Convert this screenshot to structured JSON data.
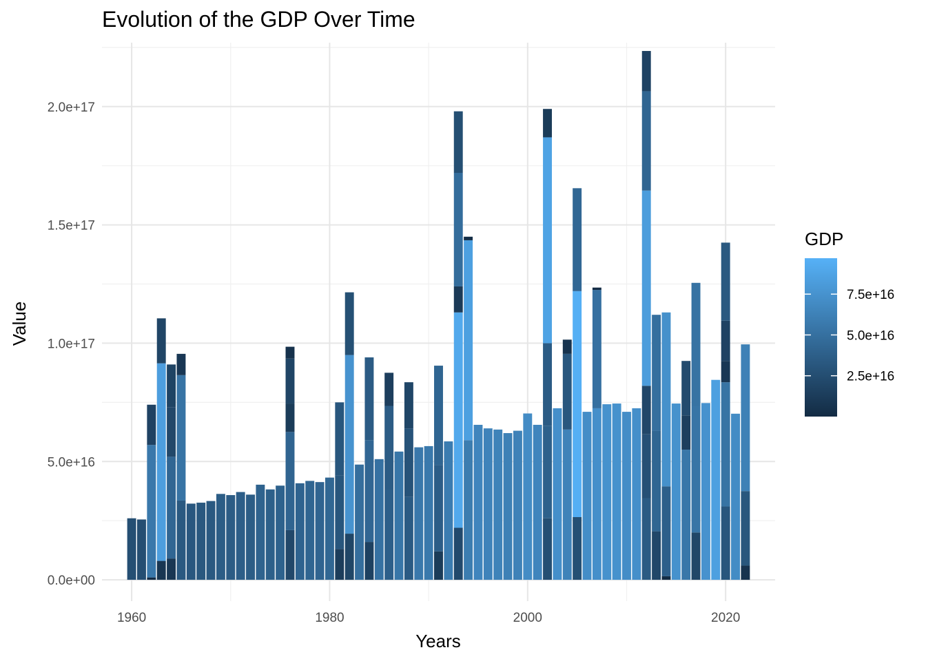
{
  "chart_data": {
    "type": "bar",
    "stacked": true,
    "title": "Evolution of the GDP Over Time",
    "xlabel": "Years",
    "ylabel": "Value",
    "xlim": [
      1957,
      2025
    ],
    "ylim": [
      -9000000000000000,
      227000000000000000
    ],
    "x_ticks": [
      1960,
      1980,
      2000,
      2020
    ],
    "x_tick_labels": [
      "1960",
      "1980",
      "2000",
      "2020"
    ],
    "y_ticks": [
      0,
      50000000000000000,
      100000000000000000,
      150000000000000000,
      200000000000000000
    ],
    "y_tick_labels": [
      "0.0e+00",
      "5.0e+16",
      "1.0e+17",
      "1.5e+17",
      "2.0e+17"
    ],
    "grid": true,
    "legend": {
      "title": "GDP",
      "position": "right",
      "type": "colorbar",
      "min": 0,
      "max": 97000000000000000,
      "breaks": [
        25000000000000000,
        50000000000000000,
        75000000000000000
      ],
      "labels": [
        "2.5e+16",
        "5.0e+16",
        "7.5e+16"
      ],
      "low_color": "#132B43",
      "high_color": "#56B1F7"
    },
    "fill_scale": {
      "min": 0,
      "max": 97000000000000000,
      "low": "#132B43",
      "high": "#56B1F7"
    },
    "bars": [
      {
        "year": 1960,
        "segments": [
          2.6e+16
        ]
      },
      {
        "year": 1961,
        "segments": [
          2.55e+16
        ]
      },
      {
        "year": 1962,
        "segments": [
          1000000000000000.0,
          5.6e+16,
          1.7e+16
        ]
      },
      {
        "year": 1963,
        "segments": [
          8000000000000000.0,
          8.35e+16,
          1.9e+16
        ]
      },
      {
        "year": 1964,
        "segments": [
          9000000000000000.0,
          4.3e+16,
          2.1e+16,
          1.8e+16
        ]
      },
      {
        "year": 1965,
        "segments": [
          3.35e+16,
          5.3e+16,
          9000000000000000.0
        ]
      },
      {
        "year": 1966,
        "segments": [
          3.22e+16
        ]
      },
      {
        "year": 1967,
        "segments": [
          3.26e+16
        ]
      },
      {
        "year": 1968,
        "segments": [
          3.33e+16
        ]
      },
      {
        "year": 1969,
        "segments": [
          3.63e+16
        ]
      },
      {
        "year": 1970,
        "segments": [
          3.58e+16
        ]
      },
      {
        "year": 1971,
        "segments": [
          3.71e+16
        ]
      },
      {
        "year": 1972,
        "segments": [
          3.6e+16
        ]
      },
      {
        "year": 1973,
        "segments": [
          4.02e+16
        ]
      },
      {
        "year": 1974,
        "segments": [
          3.82e+16
        ]
      },
      {
        "year": 1975,
        "segments": [
          3.98e+16
        ]
      },
      {
        "year": 1976,
        "segments": [
          2.1e+16,
          4.15e+16,
          1.2e+16,
          1.9e+16,
          5000000000000000.0
        ]
      },
      {
        "year": 1977,
        "segments": [
          4.08e+16
        ]
      },
      {
        "year": 1978,
        "segments": [
          4.18e+16
        ]
      },
      {
        "year": 1979,
        "segments": [
          4.13e+16
        ]
      },
      {
        "year": 1980,
        "segments": [
          4.32e+16
        ]
      },
      {
        "year": 1981,
        "segments": [
          1.3e+16,
          3.1e+16,
          3.1e+16
        ]
      },
      {
        "year": 1982,
        "segments": [
          1.95e+16,
          7.55e+16,
          2.65e+16
        ]
      },
      {
        "year": 1983,
        "segments": [
          4.87e+16
        ]
      },
      {
        "year": 1984,
        "segments": [
          1.6e+16,
          4.3e+16,
          3.5e+16
        ]
      },
      {
        "year": 1985,
        "segments": [
          5.1e+16
        ]
      },
      {
        "year": 1986,
        "segments": [
          3.8e+16,
          3.55e+16,
          1.4e+16
        ]
      },
      {
        "year": 1987,
        "segments": [
          5.42e+16
        ]
      },
      {
        "year": 1988,
        "segments": [
          3.5e+16,
          2.9e+16,
          1.95e+16
        ]
      },
      {
        "year": 1989,
        "segments": [
          5.6e+16
        ]
      },
      {
        "year": 1990,
        "segments": [
          5.65e+16
        ]
      },
      {
        "year": 1991,
        "segments": [
          1.2e+16,
          3.65e+16,
          4.2e+16
        ]
      },
      {
        "year": 1992,
        "segments": [
          5.85e+16
        ]
      },
      {
        "year": 1993,
        "segments": [
          2.2e+16,
          9.1e+16,
          1.1e+16,
          4.8e+16,
          2.6e+16
        ]
      },
      {
        "year": 1994,
        "segments": [
          5.9e+16,
          8.45e+16,
          1500000000000000.0
        ]
      },
      {
        "year": 1995,
        "segments": [
          6.55e+16
        ]
      },
      {
        "year": 1996,
        "segments": [
          6.4e+16
        ]
      },
      {
        "year": 1997,
        "segments": [
          6.35e+16
        ]
      },
      {
        "year": 1998,
        "segments": [
          6.2e+16
        ]
      },
      {
        "year": 1999,
        "segments": [
          6.3e+16
        ]
      },
      {
        "year": 2000,
        "segments": [
          7.03e+16
        ]
      },
      {
        "year": 2001,
        "segments": [
          6.55e+16
        ]
      },
      {
        "year": 2002,
        "segments": [
          2.6e+16,
          3.9e+16,
          3.5e+16,
          8.7e+16,
          1.2e+16
        ]
      },
      {
        "year": 2003,
        "segments": [
          7.25e+16
        ]
      },
      {
        "year": 2004,
        "segments": [
          6.35e+16,
          3.2e+16,
          6000000000000000.0
        ]
      },
      {
        "year": 2005,
        "segments": [
          2.65e+16,
          9.55e+16,
          4.35e+16
        ]
      },
      {
        "year": 2006,
        "segments": [
          7.1e+16
        ]
      },
      {
        "year": 2007,
        "segments": [
          7.25e+16,
          5e+16,
          1000000000000000.0
        ]
      },
      {
        "year": 2008,
        "segments": [
          7.42e+16
        ]
      },
      {
        "year": 2009,
        "segments": [
          7.45e+16
        ]
      },
      {
        "year": 2010,
        "segments": [
          7.1e+16
        ]
      },
      {
        "year": 2011,
        "segments": [
          7.25e+16
        ]
      },
      {
        "year": 2012,
        "segments": [
          3.45e+16,
          2.7e+16,
          2.05e+16,
          8.25e+16,
          4.2e+16,
          1.7e+16
        ]
      },
      {
        "year": 2013,
        "segments": [
          2.05e+16,
          4.25e+16,
          4.9e+16
        ]
      },
      {
        "year": 2014,
        "segments": [
          1500000000000000.0,
          3.8e+16,
          7.35e+16
        ]
      },
      {
        "year": 2015,
        "segments": [
          7.45e+16
        ]
      },
      {
        "year": 2016,
        "segments": [
          5.5e+16,
          1.45e+16,
          2.3e+16
        ]
      },
      {
        "year": 2017,
        "segments": [
          2e+16,
          5.35e+16,
          5.2e+16
        ]
      },
      {
        "year": 2018,
        "segments": [
          7.47e+16
        ]
      },
      {
        "year": 2019,
        "segments": [
          8.45e+16
        ]
      },
      {
        "year": 2020,
        "segments": [
          3.1e+16,
          5.25e+16,
          9000000000000000.0,
          1.7e+16,
          3.3e+16
        ]
      },
      {
        "year": 2021,
        "segments": [
          7.02e+16
        ]
      },
      {
        "year": 2022,
        "segments": [
          6000000000000000.0,
          3.15e+16,
          6.2e+16
        ]
      }
    ]
  }
}
